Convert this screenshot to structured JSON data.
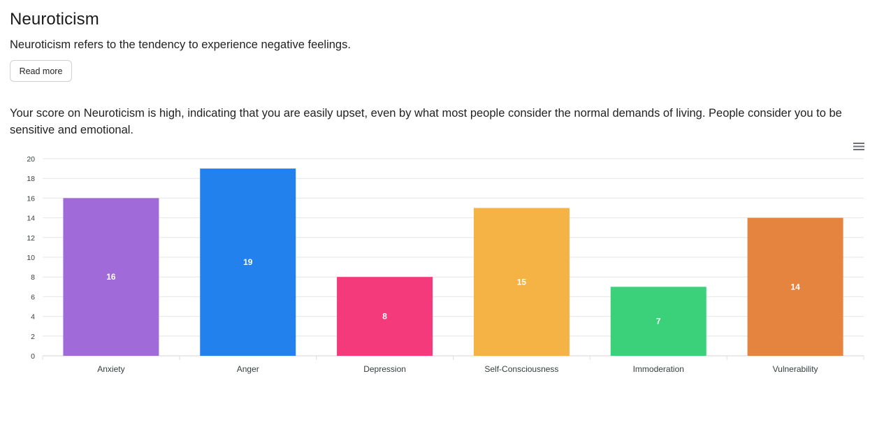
{
  "header": {
    "title": "Neuroticism",
    "summary": "Neuroticism refers to the tendency to experience negative feelings.",
    "read_more_label": "Read more"
  },
  "result": {
    "text": "Your score on Neuroticism is high, indicating that you are easily upset, even by what most people consider the normal demands of living. People consider you to be sensitive and emotional."
  },
  "chart_menu": {
    "icon": "hamburger-menu-icon"
  },
  "chart_data": {
    "type": "bar",
    "categories": [
      "Anxiety",
      "Anger",
      "Depression",
      "Self-Consciousness",
      "Immoderation",
      "Vulnerability"
    ],
    "values": [
      16,
      19,
      8,
      15,
      7,
      14
    ],
    "colors": [
      "#a06ad8",
      "#2381ee",
      "#f43a7a",
      "#f5b245",
      "#3bd17a",
      "#e5843f"
    ],
    "ylim": [
      0,
      20
    ],
    "yticks": [
      0,
      2,
      4,
      6,
      8,
      10,
      12,
      14,
      16,
      18,
      20
    ],
    "grid": true,
    "data_labels": true
  }
}
